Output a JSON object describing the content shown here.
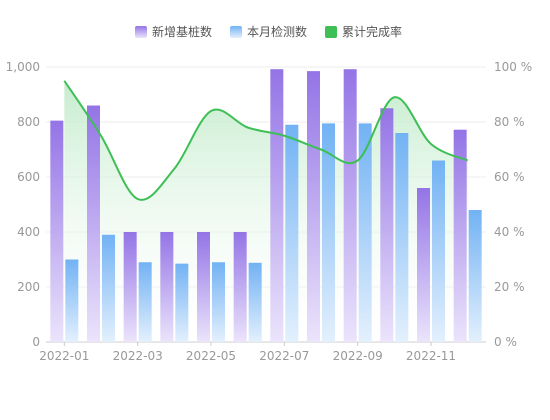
{
  "chart_data": {
    "type": "bar",
    "x": [
      "2022-01",
      "2022-02",
      "2022-03",
      "2022-04",
      "2022-05",
      "2022-06",
      "2022-07",
      "2022-08",
      "2022-09",
      "2022-10",
      "2022-11",
      "2022-12"
    ],
    "x_tick_labels": [
      "2022-01",
      "2022-03",
      "2022-05",
      "2022-07",
      "2022-09",
      "2022-11"
    ],
    "series": [
      {
        "name": "新增基桩数",
        "kind": "bar",
        "axis": "left",
        "values": [
          805,
          860,
          400,
          400,
          400,
          400,
          992,
          985,
          992,
          850,
          560,
          772
        ],
        "color": "#9b7be8"
      },
      {
        "name": "本月检测数",
        "kind": "bar",
        "axis": "left",
        "values": [
          300,
          390,
          290,
          285,
          290,
          288,
          790,
          795,
          795,
          760,
          660,
          480
        ],
        "color": "#7ab8f5"
      },
      {
        "name": "累计完成率",
        "kind": "line",
        "axis": "right",
        "smooth": true,
        "area": true,
        "values": [
          95,
          75,
          52,
          63,
          84,
          78,
          75,
          70,
          66,
          89,
          72,
          66
        ],
        "color": "#3dbf56"
      }
    ],
    "y_left": {
      "min": 0,
      "max": 1000,
      "ticks": [
        "0",
        "200",
        "400",
        "600",
        "800",
        "1,000"
      ]
    },
    "y_right": {
      "min": 0,
      "max": 100,
      "ticks": [
        "0 %",
        "20 %",
        "40 %",
        "60 %",
        "80 %",
        "100 %"
      ]
    },
    "legend_position": "top-center",
    "grid": true
  }
}
